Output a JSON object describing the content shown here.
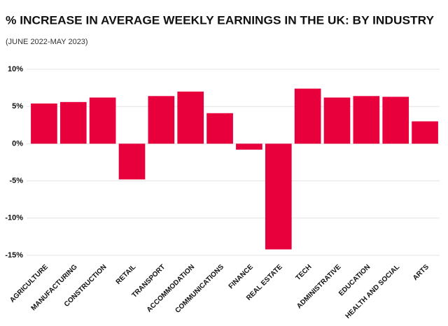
{
  "chart_data": {
    "type": "bar",
    "title": "% INCREASE IN AVERAGE WEEKLY EARNINGS IN THE UK: BY INDUSTRY",
    "subtitle": "(JUNE 2022-MAY 2023)",
    "categories": [
      "AGRICULTURE",
      "MANUFACTURING",
      "CONSTRUCTION",
      "RETAIL",
      "TRANSPORT",
      "ACCOMMODATION",
      "COMMUNICATIONS",
      "FINANCE",
      "REAL ESTATE",
      "TECH",
      "ADMINISTRATIVE",
      "EDUCATION",
      "HEALTH AND SOCIAL",
      "ARTS"
    ],
    "values": [
      5.4,
      5.6,
      6.2,
      -4.8,
      6.4,
      7.0,
      4.1,
      -0.8,
      -14.2,
      7.4,
      6.2,
      6.4,
      6.3,
      3.0
    ],
    "color": "#e8003d",
    "ylim": [
      -15,
      10
    ],
    "yticks": [
      {
        "value": -15,
        "label": "-15%"
      },
      {
        "value": -10,
        "label": "-10%"
      },
      {
        "value": -5,
        "label": "-5%"
      },
      {
        "value": 0,
        "label": "0%"
      },
      {
        "value": 5,
        "label": "5%"
      },
      {
        "value": 10,
        "label": "10%"
      }
    ],
    "grid": true
  }
}
